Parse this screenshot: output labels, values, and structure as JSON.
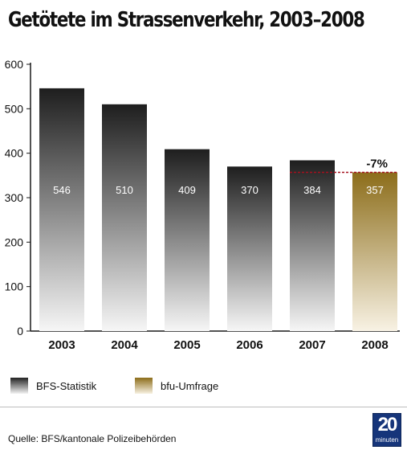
{
  "title": "Getötete im Strassenverkehr, 2003–2008",
  "chart_data": {
    "type": "bar",
    "title": "Getötete im Strassenverkehr, 2003–2008",
    "categories": [
      "2003",
      "2004",
      "2005",
      "2006",
      "2007",
      "2008"
    ],
    "values": [
      546,
      510,
      409,
      370,
      384,
      357
    ],
    "value_labels": [
      "546",
      "510",
      "409",
      "370",
      "384",
      "357"
    ],
    "sources": [
      "BFS-Statistik",
      "BFS-Statistik",
      "BFS-Statistik",
      "BFS-Statistik",
      "BFS-Statistik",
      "bfu-Umfrage"
    ],
    "ylim": [
      0,
      600
    ],
    "yticks": [
      "0",
      "100",
      "200",
      "300",
      "400",
      "500",
      "600"
    ],
    "ytick_values": [
      0,
      100,
      200,
      300,
      400,
      500,
      600
    ],
    "grid": false,
    "legend_position": "bottom-left",
    "annotation": {
      "text": "-7%",
      "reference_value": 357,
      "from_category": "2007",
      "to_category": "2008"
    },
    "colors": {
      "bfs_dark": "#1e1e1e",
      "bfs_light": "#f6f6f6",
      "bfu_dark": "#8c6d1a",
      "bfu_light": "#f8f2e4",
      "dashed_line": "#a3101e"
    }
  },
  "legend": {
    "items": [
      {
        "label": "BFS-Statistik",
        "color": "#333333"
      },
      {
        "label": "bfu-Umfrage",
        "color": "#8c6d1a"
      }
    ]
  },
  "footer": {
    "source": "Quelle: BFS/kantonale Polizeibehörden",
    "logo_number": "20",
    "logo_word": "minuten"
  }
}
